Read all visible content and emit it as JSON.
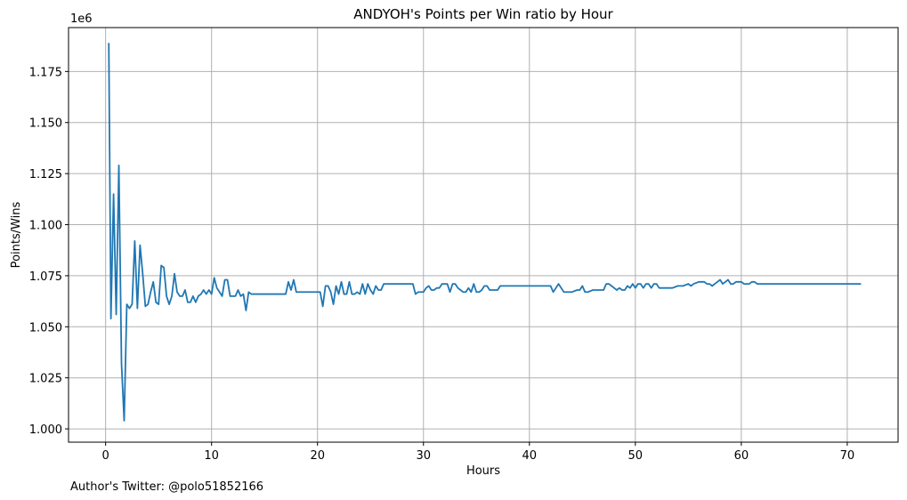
{
  "chart_data": {
    "type": "line",
    "title": "ANDYOH's Points per Win ratio by Hour",
    "xlabel": "Hours",
    "ylabel": "Points/Wins",
    "offset_text": "1e6",
    "footer": "Author's Twitter: @polo51852166",
    "xlim": [
      -3.5,
      74.8
    ],
    "ylim": [
      0.9935,
      1.1965
    ],
    "x_ticks": [
      0,
      10,
      20,
      30,
      40,
      50,
      60,
      70
    ],
    "x_tick_labels": [
      "0",
      "10",
      "20",
      "30",
      "40",
      "50",
      "60",
      "70"
    ],
    "y_ticks": [
      1.0,
      1.025,
      1.05,
      1.075,
      1.1,
      1.125,
      1.15,
      1.175
    ],
    "y_tick_labels": [
      "1.000",
      "1.025",
      "1.050",
      "1.075",
      "1.100",
      "1.125",
      "1.150",
      "1.175"
    ],
    "grid": true,
    "line_color": "#1f77b4",
    "series": [
      {
        "x": [
          0.3,
          0.5,
          0.75,
          1.0,
          1.25,
          1.5,
          1.75,
          2.0,
          2.25,
          2.5,
          2.75,
          3.0,
          3.25,
          3.5,
          3.75,
          4.0,
          4.25,
          4.5,
          4.75,
          5.0,
          5.25,
          5.5,
          5.75,
          6.0,
          6.25,
          6.5,
          6.75,
          7.0,
          7.25,
          7.5,
          7.75,
          8.0,
          8.25,
          8.5,
          8.75,
          9.0,
          9.25,
          9.5,
          9.75,
          10.0,
          10.25,
          10.5,
          10.75,
          11.0,
          11.25,
          11.5,
          11.75,
          12.0,
          12.25,
          12.5,
          12.75,
          13.0,
          13.25,
          13.5,
          13.75,
          14.0,
          14.5,
          15.0,
          16.0,
          17.0,
          17.25,
          17.5,
          17.75,
          18.0,
          18.25,
          19.0,
          20.0,
          20.25,
          20.5,
          20.75,
          21.0,
          21.25,
          21.5,
          21.75,
          22.0,
          22.25,
          22.5,
          22.75,
          23.0,
          23.25,
          23.5,
          23.75,
          24.0,
          24.25,
          24.5,
          24.75,
          25.0,
          25.25,
          25.5,
          25.75,
          26.0,
          26.25,
          26.5,
          27.0,
          28.0,
          29.0,
          29.25,
          29.5,
          30.0,
          30.25,
          30.5,
          30.75,
          31.0,
          31.25,
          31.5,
          31.75,
          32.0,
          32.25,
          32.5,
          32.75,
          33.0,
          33.25,
          33.5,
          33.75,
          34.0,
          34.25,
          34.5,
          34.75,
          35.0,
          35.25,
          35.5,
          35.75,
          36.0,
          36.25,
          36.5,
          36.75,
          37.0,
          37.25,
          37.5,
          38.0,
          39.0,
          40.0,
          41.0,
          42.0,
          42.25,
          42.5,
          42.75,
          43.0,
          43.25,
          43.5,
          44.0,
          44.5,
          44.75,
          45.0,
          45.25,
          45.5,
          46.0,
          46.5,
          47.0,
          47.25,
          47.5,
          47.75,
          48.0,
          48.25,
          48.5,
          48.75,
          49.0,
          49.25,
          49.5,
          49.75,
          50.0,
          50.25,
          50.5,
          50.75,
          51.0,
          51.25,
          51.5,
          51.75,
          52.0,
          52.25,
          52.5,
          52.75,
          53.0,
          53.25,
          53.5,
          54.0,
          54.5,
          55.0,
          55.25,
          55.5,
          56.0,
          56.5,
          56.75,
          57.0,
          57.25,
          57.5,
          58.0,
          58.25,
          58.5,
          58.75,
          59.0,
          59.25,
          59.5,
          59.75,
          60.0,
          60.25,
          60.5,
          60.75,
          61.0,
          61.25,
          61.5,
          61.75,
          62.0,
          62.5,
          63.0,
          65.0,
          67.0,
          69.0,
          71.3
        ],
        "y": [
          1.189,
          1.054,
          1.115,
          1.056,
          1.129,
          1.032,
          1.004,
          1.061,
          1.059,
          1.061,
          1.092,
          1.059,
          1.09,
          1.076,
          1.06,
          1.061,
          1.067,
          1.072,
          1.062,
          1.061,
          1.08,
          1.079,
          1.065,
          1.061,
          1.065,
          1.076,
          1.067,
          1.065,
          1.065,
          1.068,
          1.062,
          1.062,
          1.065,
          1.062,
          1.065,
          1.066,
          1.068,
          1.066,
          1.068,
          1.066,
          1.074,
          1.069,
          1.067,
          1.065,
          1.073,
          1.073,
          1.065,
          1.065,
          1.065,
          1.068,
          1.065,
          1.066,
          1.058,
          1.067,
          1.066,
          1.066,
          1.066,
          1.066,
          1.066,
          1.066,
          1.072,
          1.068,
          1.073,
          1.067,
          1.067,
          1.067,
          1.067,
          1.067,
          1.06,
          1.07,
          1.07,
          1.067,
          1.061,
          1.07,
          1.066,
          1.072,
          1.066,
          1.066,
          1.072,
          1.066,
          1.066,
          1.067,
          1.066,
          1.071,
          1.066,
          1.071,
          1.068,
          1.066,
          1.07,
          1.068,
          1.068,
          1.071,
          1.071,
          1.071,
          1.071,
          1.071,
          1.066,
          1.067,
          1.067,
          1.069,
          1.07,
          1.068,
          1.068,
          1.069,
          1.069,
          1.071,
          1.071,
          1.071,
          1.067,
          1.071,
          1.071,
          1.069,
          1.068,
          1.067,
          1.067,
          1.069,
          1.067,
          1.071,
          1.067,
          1.067,
          1.068,
          1.07,
          1.07,
          1.068,
          1.068,
          1.068,
          1.068,
          1.07,
          1.07,
          1.07,
          1.07,
          1.07,
          1.07,
          1.07,
          1.067,
          1.069,
          1.071,
          1.069,
          1.067,
          1.067,
          1.067,
          1.068,
          1.068,
          1.07,
          1.067,
          1.067,
          1.068,
          1.068,
          1.068,
          1.071,
          1.071,
          1.07,
          1.069,
          1.068,
          1.069,
          1.068,
          1.068,
          1.07,
          1.069,
          1.071,
          1.069,
          1.071,
          1.071,
          1.069,
          1.071,
          1.071,
          1.069,
          1.071,
          1.071,
          1.069,
          1.069,
          1.069,
          1.069,
          1.069,
          1.069,
          1.07,
          1.07,
          1.071,
          1.07,
          1.071,
          1.072,
          1.072,
          1.071,
          1.071,
          1.07,
          1.071,
          1.073,
          1.071,
          1.072,
          1.073,
          1.071,
          1.071,
          1.072,
          1.072,
          1.072,
          1.071,
          1.071,
          1.071,
          1.072,
          1.072,
          1.071,
          1.071,
          1.071,
          1.071,
          1.071,
          1.071,
          1.071,
          1.071,
          1.071
        ]
      }
    ]
  }
}
